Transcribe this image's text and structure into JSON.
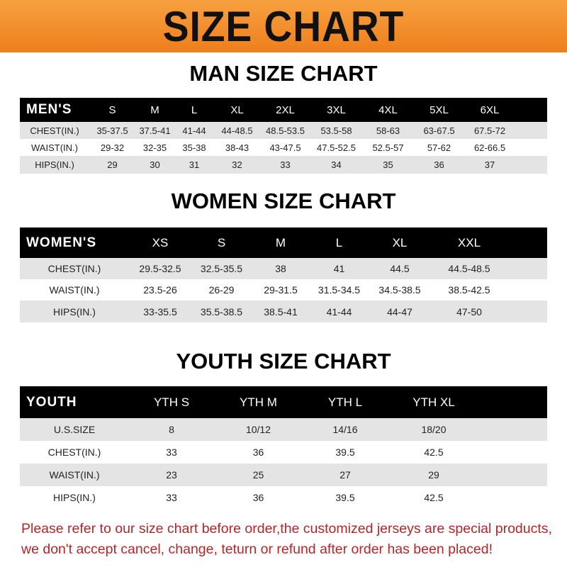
{
  "banner": {
    "title": "SIZE CHART",
    "color": "#f08a24"
  },
  "men": {
    "title": "MAN SIZE CHART",
    "header": [
      "MEN'S",
      "S",
      "M",
      "L",
      "XL",
      "2XL",
      "3XL",
      "4XL",
      "5XL",
      "6XL"
    ],
    "rows": [
      [
        "CHEST(IN.)",
        "35-37.5",
        "37.5-41",
        "41-44",
        "44-48.5",
        "48.5-53.5",
        "53.5-58",
        "58-63",
        "63-67.5",
        "67.5-72"
      ],
      [
        "WAIST(IN.)",
        "29-32",
        "32-35",
        "35-38",
        "38-43",
        "43-47.5",
        "47.5-52.5",
        "52.5-57",
        "57-62",
        "62-66.5"
      ],
      [
        "HIPS(IN.)",
        "29",
        "30",
        "31",
        "32",
        "33",
        "34",
        "35",
        "36",
        "37"
      ]
    ]
  },
  "women": {
    "title": "WOMEN SIZE CHART",
    "header": [
      "WOMEN'S",
      "XS",
      "S",
      "M",
      "L",
      "XL",
      "XXL"
    ],
    "rows": [
      [
        "CHEST(IN.)",
        "29.5-32.5",
        "32.5-35.5",
        "38",
        "41",
        "44.5",
        "44.5-48.5"
      ],
      [
        "WAIST(IN.)",
        "23.5-26",
        "26-29",
        "29-31.5",
        "31.5-34.5",
        "34.5-38.5",
        "38.5-42.5"
      ],
      [
        "HIPS(IN.)",
        "33-35.5",
        "35.5-38.5",
        "38.5-41",
        "41-44",
        "44-47",
        "47-50"
      ]
    ]
  },
  "youth": {
    "title": "YOUTH SIZE CHART",
    "header": [
      "YOUTH",
      "YTH S",
      "YTH M",
      "YTH L",
      "YTH XL"
    ],
    "rows": [
      [
        "U.S.SIZE",
        "8",
        "10/12",
        "14/16",
        "18/20"
      ],
      [
        "CHEST(IN.)",
        "33",
        "36",
        "39.5",
        "42.5"
      ],
      [
        "WAIST(IN.)",
        "23",
        "25",
        "27",
        "29"
      ],
      [
        "HIPS(IN.)",
        "33",
        "36",
        "39.5",
        "42.5"
      ]
    ]
  },
  "notice": {
    "line1": "Please refer to our size chart before order,the customized jerseys are special products,",
    "line2": "we don't accept cancel, change, teturn or refund after order has been placed!",
    "color": "#b3262a"
  }
}
